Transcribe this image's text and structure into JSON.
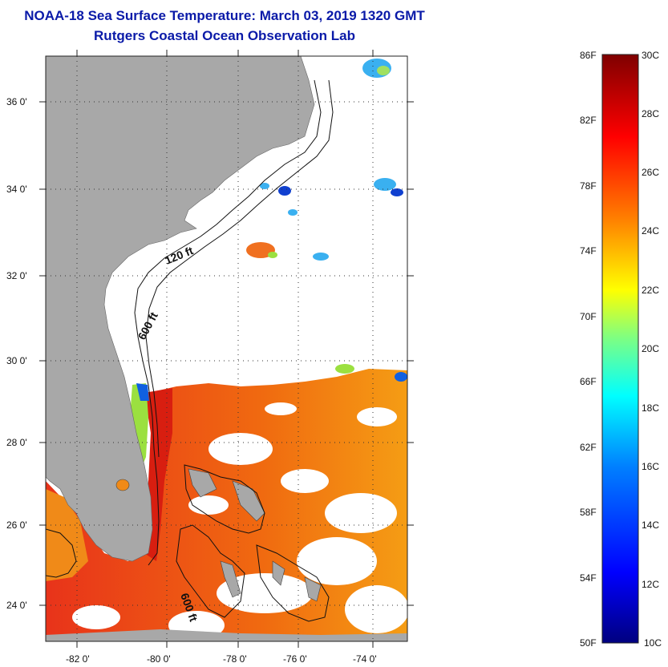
{
  "title_line1": "NOAA-18 Sea Surface Temperature:  March 03, 2019 1320 GMT",
  "title_line2": "Rutgers Coastal Ocean Observation Lab",
  "map": {
    "lon_labels": [
      "-82 0'",
      "-80 0'",
      "-78 0'",
      "-76 0'",
      "-74 0'"
    ],
    "lat_labels": [
      "36 0'",
      "34 0'",
      "32 0'",
      "30 0'",
      "28 0'",
      "26 0'",
      "24 0'"
    ],
    "contour_labels": [
      "120 ft",
      "600 ft",
      "600 ft"
    ],
    "colors": {
      "land": "#a8a8a8",
      "cloud": "#ffffff",
      "warm_water": "#ee4a12"
    }
  },
  "colorbar": {
    "fahrenheit": [
      "86F",
      "82F",
      "78F",
      "74F",
      "70F",
      "66F",
      "62F",
      "58F",
      "54F",
      "50F"
    ],
    "celsius": [
      "30C",
      "28C",
      "26C",
      "24C",
      "22C",
      "20C",
      "18C",
      "16C",
      "14C",
      "12C",
      "10C"
    ],
    "gradient": [
      "#00007f",
      "#0000ff",
      "#0080ff",
      "#00ffff",
      "#80ff80",
      "#ffff00",
      "#ff8000",
      "#ff0000",
      "#7f0000"
    ]
  }
}
